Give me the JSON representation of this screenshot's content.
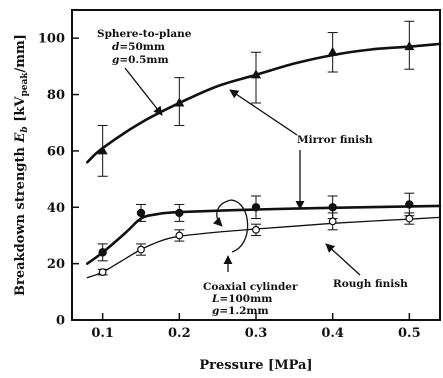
{
  "chart_data": {
    "type": "line",
    "xlabel": "Pressure [MPa]",
    "ylabel_main": "Breakdown strength ",
    "ylabel_sym": "E",
    "ylabel_sub": "b",
    "ylabel_unit_open": " [kV",
    "ylabel_unit_sub": "peak",
    "ylabel_unit_close": "/mm]",
    "xlim": [
      0.06,
      0.54
    ],
    "ylim": [
      0,
      110
    ],
    "xticks": [
      0.1,
      0.2,
      0.3,
      0.4,
      0.5
    ],
    "xtick_labels": [
      "0.1",
      "0.2",
      "0.3",
      "0.4",
      "0.5"
    ],
    "yticks": [
      0,
      20,
      40,
      60,
      80,
      100
    ],
    "ytick_labels": [
      "0",
      "20",
      "40",
      "60",
      "80",
      "100"
    ],
    "grid": false,
    "series": [
      {
        "marker": "triangle",
        "line": "thick",
        "points": [
          {
            "x": 0.1,
            "y": 60,
            "lo": 51,
            "hi": 69
          },
          {
            "x": 0.2,
            "y": 77,
            "lo": 69,
            "hi": 86
          },
          {
            "x": 0.3,
            "y": 87,
            "lo": 77,
            "hi": 95
          },
          {
            "x": 0.4,
            "y": 95,
            "lo": 88,
            "hi": 102
          },
          {
            "x": 0.5,
            "y": 97,
            "lo": 89,
            "hi": 106
          }
        ],
        "curve": [
          [
            0.08,
            56
          ],
          [
            0.1,
            61
          ],
          [
            0.15,
            70
          ],
          [
            0.2,
            77
          ],
          [
            0.25,
            83
          ],
          [
            0.3,
            87
          ],
          [
            0.35,
            91
          ],
          [
            0.4,
            94
          ],
          [
            0.45,
            96
          ],
          [
            0.5,
            97
          ],
          [
            0.54,
            98
          ]
        ]
      },
      {
        "marker": "filled-circle",
        "line": "thick",
        "points": [
          {
            "x": 0.1,
            "y": 24,
            "lo": 21,
            "hi": 27
          },
          {
            "x": 0.15,
            "y": 38,
            "lo": 35,
            "hi": 41
          },
          {
            "x": 0.2,
            "y": 38,
            "lo": 35,
            "hi": 41
          },
          {
            "x": 0.3,
            "y": 40,
            "lo": 36,
            "hi": 44
          },
          {
            "x": 0.4,
            "y": 40,
            "lo": 36,
            "hi": 44
          },
          {
            "x": 0.5,
            "y": 41,
            "lo": 37,
            "hi": 45
          }
        ],
        "curve": [
          [
            0.08,
            20
          ],
          [
            0.1,
            24
          ],
          [
            0.13,
            31
          ],
          [
            0.15,
            36
          ],
          [
            0.17,
            37.5
          ],
          [
            0.2,
            38.3
          ],
          [
            0.3,
            39.2
          ],
          [
            0.4,
            39.8
          ],
          [
            0.5,
            40.3
          ],
          [
            0.54,
            40.5
          ]
        ]
      },
      {
        "marker": "open-circle",
        "line": "thin",
        "points": [
          {
            "x": 0.1,
            "y": 17,
            "lo": 16,
            "hi": 18
          },
          {
            "x": 0.15,
            "y": 25,
            "lo": 23,
            "hi": 27
          },
          {
            "x": 0.2,
            "y": 30,
            "lo": 28,
            "hi": 32
          },
          {
            "x": 0.3,
            "y": 32,
            "lo": 30,
            "hi": 34
          },
          {
            "x": 0.4,
            "y": 35,
            "lo": 32,
            "hi": 38
          },
          {
            "x": 0.5,
            "y": 36,
            "lo": 34,
            "hi": 38
          }
        ],
        "curve": [
          [
            0.08,
            15
          ],
          [
            0.1,
            17
          ],
          [
            0.125,
            21
          ],
          [
            0.15,
            25
          ],
          [
            0.175,
            28
          ],
          [
            0.2,
            29.7
          ],
          [
            0.25,
            31.2
          ],
          [
            0.3,
            32.3
          ],
          [
            0.35,
            33.3
          ],
          [
            0.4,
            34.3
          ],
          [
            0.45,
            35.1
          ],
          [
            0.5,
            35.8
          ],
          [
            0.54,
            36.4
          ]
        ]
      }
    ],
    "annotations": {
      "sphere": {
        "title": "Sphere-to-plane",
        "d_sym": "d",
        "d_val": "=50mm",
        "g_sym": "g",
        "g_val": "=0.5mm"
      },
      "mirror": "Mirror finish",
      "coaxial": {
        "title": "Coaxial cylinder",
        "l_sym": "L",
        "l_val": "=100mm",
        "g_sym": "g",
        "g_val": "=1.2mm"
      },
      "rough": "Rough finish"
    }
  }
}
